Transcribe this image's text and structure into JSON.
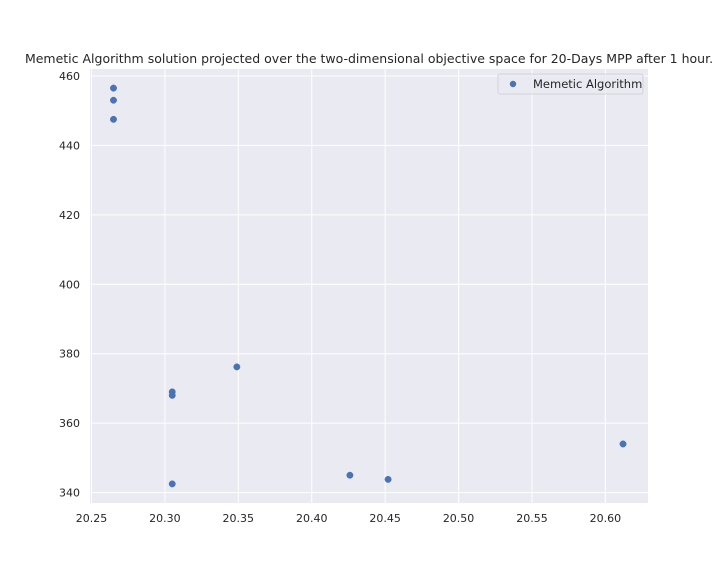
{
  "chart_data": {
    "type": "scatter",
    "title": "Memetic Algorithm solution projected over the two-dimensional objective space for 20-Days MPP after 1 hour.",
    "xlabel": "",
    "ylabel": "",
    "xlim": [
      20.249,
      20.629
    ],
    "ylim": [
      337,
      462
    ],
    "xticks": [
      20.25,
      20.3,
      20.35,
      20.4,
      20.45,
      20.5,
      20.55,
      20.6
    ],
    "xtick_labels": [
      "20.25",
      "20.30",
      "20.35",
      "20.40",
      "20.45",
      "20.50",
      "20.55",
      "20.60"
    ],
    "yticks": [
      340,
      360,
      380,
      400,
      420,
      440,
      460
    ],
    "ytick_labels": [
      "340",
      "360",
      "380",
      "400",
      "420",
      "440",
      "460"
    ],
    "grid": true,
    "legend_position": "upper-right",
    "series": [
      {
        "name": "Memetic Algorithm",
        "color": "#4c72b0",
        "points": [
          {
            "x": 20.265,
            "y": 456.5
          },
          {
            "x": 20.265,
            "y": 453.0
          },
          {
            "x": 20.265,
            "y": 447.5
          },
          {
            "x": 20.305,
            "y": 369.0
          },
          {
            "x": 20.305,
            "y": 368.0
          },
          {
            "x": 20.305,
            "y": 342.5
          },
          {
            "x": 20.349,
            "y": 376.2
          },
          {
            "x": 20.426,
            "y": 345.0
          },
          {
            "x": 20.452,
            "y": 343.8
          },
          {
            "x": 20.612,
            "y": 354.0
          }
        ]
      }
    ]
  }
}
